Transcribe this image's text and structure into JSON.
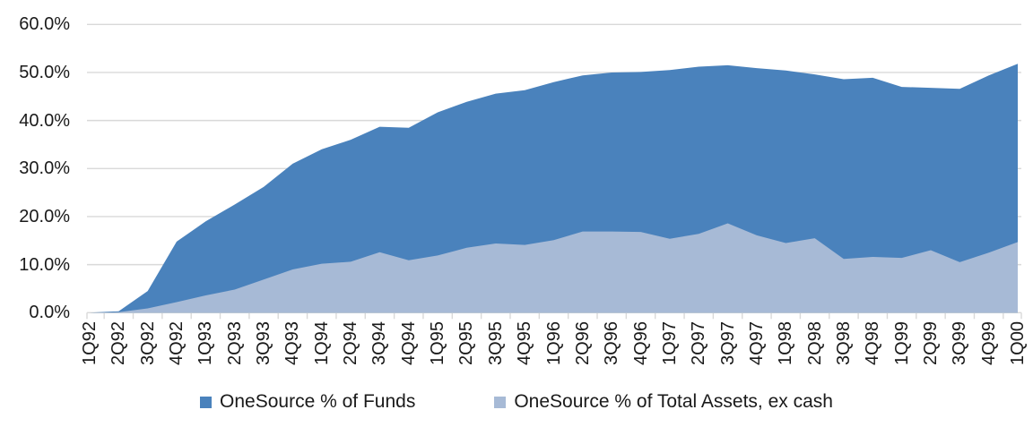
{
  "chart_data": {
    "type": "area",
    "title": "",
    "xlabel": "",
    "ylabel": "",
    "ylim": [
      0,
      60
    ],
    "y_tick_labels": [
      "0.0%",
      "10.0%",
      "20.0%",
      "30.0%",
      "40.0%",
      "50.0%",
      "60.0%"
    ],
    "grid": "horizontal",
    "legend_position": "bottom-center",
    "gridline_color": "#D9D9D9",
    "axis_text_color": "#1a1a1a",
    "categories": [
      "1Q92",
      "2Q92",
      "3Q92",
      "4Q92",
      "1Q93",
      "2Q93",
      "3Q93",
      "4Q93",
      "1Q94",
      "2Q94",
      "3Q94",
      "4Q94",
      "1Q95",
      "2Q95",
      "3Q95",
      "4Q95",
      "1Q96",
      "2Q96",
      "3Q96",
      "4Q96",
      "1Q97",
      "2Q97",
      "3Q97",
      "4Q97",
      "1Q98",
      "2Q98",
      "3Q98",
      "4Q98",
      "1Q99",
      "2Q99",
      "3Q99",
      "4Q99",
      "1Q00"
    ],
    "series": [
      {
        "name": "OneSource % of Funds",
        "color": "#4A82BC",
        "values": [
          0.0,
          0.3,
          4.5,
          14.8,
          19.0,
          22.5,
          26.2,
          31.0,
          34.0,
          36.0,
          38.7,
          38.5,
          41.7,
          43.9,
          45.6,
          46.3,
          48.0,
          49.4,
          50.0,
          50.1,
          50.5,
          51.2,
          51.5,
          50.9,
          50.4,
          49.6,
          48.6,
          48.9,
          47.0,
          46.8,
          46.6,
          49.4,
          51.8
        ]
      },
      {
        "name": "OneSource % of Total Assets, ex cash",
        "color": "#A7BAD6",
        "values": [
          0.0,
          0.1,
          0.9,
          2.2,
          3.6,
          4.8,
          6.9,
          9.0,
          10.2,
          10.6,
          12.6,
          10.9,
          11.9,
          13.5,
          14.4,
          14.1,
          15.1,
          16.9,
          16.9,
          16.8,
          15.4,
          16.4,
          18.6,
          16.1,
          14.5,
          15.5,
          11.2,
          11.6,
          11.4,
          13.0,
          10.5,
          12.5,
          14.7
        ]
      }
    ]
  },
  "legend": {
    "funds_label": "OneSource % of Funds",
    "assets_label": "OneSource % of Total Assets, ex cash"
  }
}
